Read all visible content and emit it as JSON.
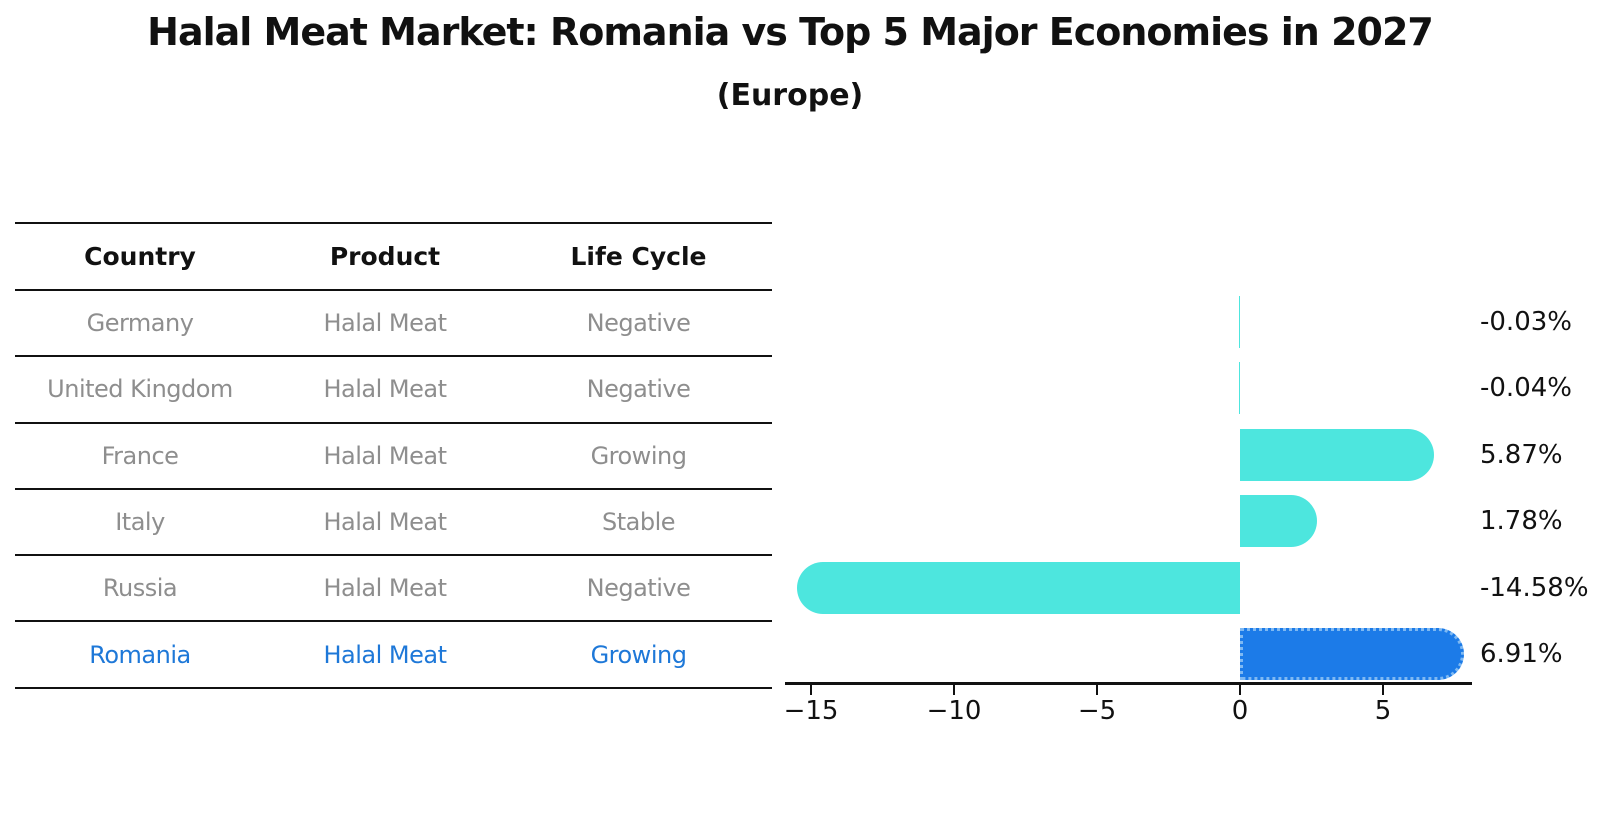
{
  "title": "Halal Meat Market: Romania vs Top 5 Major Economies in 2027",
  "subtitle": "(Europe)",
  "table": {
    "headers": [
      "Country",
      "Product",
      "Life Cycle"
    ],
    "rows": [
      {
        "country": "Germany",
        "product": "Halal Meat",
        "life_cycle": "Negative",
        "highlighted": false
      },
      {
        "country": "United Kingdom",
        "product": "Halal Meat",
        "life_cycle": "Negative",
        "highlighted": false
      },
      {
        "country": "France",
        "product": "Halal Meat",
        "life_cycle": "Growing",
        "highlighted": false
      },
      {
        "country": "Italy",
        "product": "Halal Meat",
        "life_cycle": "Stable",
        "highlighted": false
      },
      {
        "country": "Russia",
        "product": "Halal Meat",
        "life_cycle": "Negative",
        "highlighted": false
      },
      {
        "country": "Romania",
        "product": "Halal Meat",
        "life_cycle": "Growing",
        "highlighted": true
      }
    ]
  },
  "chart_data": {
    "type": "bar",
    "orientation": "horizontal",
    "categories": [
      "Germany",
      "United Kingdom",
      "France",
      "Italy",
      "Russia",
      "Romania"
    ],
    "values": [
      -0.03,
      -0.04,
      5.87,
      1.78,
      -14.58,
      6.91
    ],
    "value_labels": [
      "-0.03%",
      "-0.04%",
      "5.87%",
      "1.78%",
      "-14.58%",
      "6.91%"
    ],
    "unit": "%",
    "xticks": {
      "values": [
        -15,
        -10,
        -5,
        0,
        5
      ],
      "labels": [
        "−15",
        "−10",
        "−5",
        "0",
        "5"
      ]
    },
    "xlim": [
      -15.9,
      8.1
    ],
    "grid": false,
    "legend": false,
    "highlight_category": "Romania",
    "colors": {
      "bar": "#4DE6DE",
      "highlight_bar": "#1C7BE8",
      "highlight_bar_border": "#7FB9F2",
      "value_label_text": "#111111"
    }
  },
  "styles": {
    "line_color": "#111111",
    "table_text_color": "#8e8e8e",
    "header_text_color": "#111111",
    "highlight_text_color": "#1e78d8"
  }
}
